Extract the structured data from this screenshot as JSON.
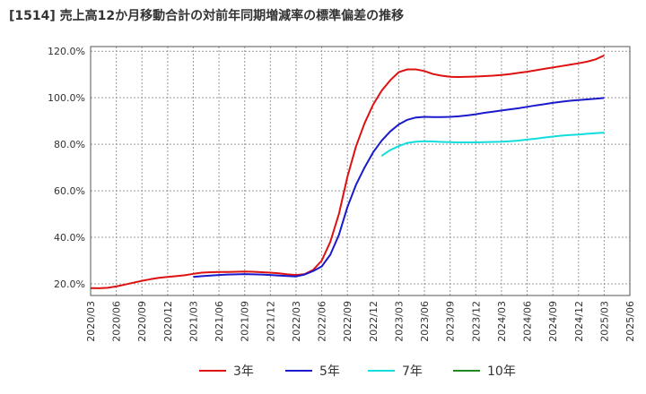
{
  "chart_data": {
    "type": "line",
    "title": "[1514]  売上高12か月移動合計の対前年同期増減率の標準偏差の推移",
    "y_ticks": [
      "20.0%",
      "40.0%",
      "60.0%",
      "80.0%",
      "100.0%",
      "120.0%"
    ],
    "y_tick_values": [
      20,
      40,
      60,
      80,
      100,
      120
    ],
    "ylim": [
      15,
      122
    ],
    "x_ticks": [
      "2020/03",
      "2020/06",
      "2020/09",
      "2020/12",
      "2021/03",
      "2021/06",
      "2021/09",
      "2021/12",
      "2022/03",
      "2022/06",
      "2022/09",
      "2022/12",
      "2023/03",
      "2023/06",
      "2023/09",
      "2023/12",
      "2024/03",
      "2024/06",
      "2024/09",
      "2024/12",
      "2025/03",
      "2025/06"
    ],
    "grid": true,
    "legend_position": "bottom",
    "series": [
      {
        "name": "3年",
        "color": "#dd1111",
        "x": [
          "2020/03",
          "2020/04",
          "2020/05",
          "2020/06",
          "2020/07",
          "2020/08",
          "2020/09",
          "2020/10",
          "2020/11",
          "2020/12",
          "2021/01",
          "2021/02",
          "2021/03",
          "2021/04",
          "2021/05",
          "2021/06",
          "2021/07",
          "2021/08",
          "2021/09",
          "2021/10",
          "2021/11",
          "2021/12",
          "2022/01",
          "2022/02",
          "2022/03",
          "2022/04",
          "2022/05",
          "2022/06",
          "2022/07",
          "2022/08",
          "2022/09",
          "2022/10",
          "2022/11",
          "2022/12",
          "2023/01",
          "2023/02",
          "2023/03",
          "2023/04",
          "2023/05",
          "2023/06",
          "2023/07",
          "2023/08",
          "2023/09",
          "2023/10",
          "2023/11",
          "2023/12",
          "2024/01",
          "2024/02",
          "2024/03",
          "2024/04",
          "2024/05",
          "2024/06",
          "2024/07",
          "2024/08",
          "2024/09",
          "2024/10",
          "2024/11",
          "2024/12",
          "2025/01",
          "2025/02",
          "2025/03"
        ],
        "values": [
          18.2,
          18.1,
          18.3,
          18.9,
          19.7,
          20.5,
          21.3,
          22.0,
          22.6,
          23.0,
          23.3,
          23.7,
          24.3,
          24.8,
          25.0,
          25.1,
          25.1,
          25.2,
          25.3,
          25.2,
          25.0,
          24.8,
          24.5,
          24.1,
          23.8,
          24.2,
          26.0,
          30.0,
          38.0,
          50.0,
          66.0,
          79.0,
          89.0,
          97.0,
          103.0,
          107.5,
          111.0,
          112.2,
          112.2,
          111.5,
          110.2,
          109.5,
          109.0,
          108.9,
          109.0,
          109.1,
          109.3,
          109.5,
          109.8,
          110.2,
          110.7,
          111.2,
          111.8,
          112.4,
          113.0,
          113.6,
          114.2,
          114.8,
          115.5,
          116.5,
          118.2
        ]
      },
      {
        "name": "5年",
        "color": "#1a1acc",
        "x": [
          "2021/03",
          "2021/04",
          "2021/05",
          "2021/06",
          "2021/07",
          "2021/08",
          "2021/09",
          "2021/10",
          "2021/11",
          "2021/12",
          "2022/01",
          "2022/02",
          "2022/03",
          "2022/04",
          "2022/05",
          "2022/06",
          "2022/07",
          "2022/08",
          "2022/09",
          "2022/10",
          "2022/11",
          "2022/12",
          "2023/01",
          "2023/02",
          "2023/03",
          "2023/04",
          "2023/05",
          "2023/06",
          "2023/07",
          "2023/08",
          "2023/09",
          "2023/10",
          "2023/11",
          "2023/12",
          "2024/01",
          "2024/02",
          "2024/03",
          "2024/04",
          "2024/05",
          "2024/06",
          "2024/07",
          "2024/08",
          "2024/09",
          "2024/10",
          "2024/11",
          "2024/12",
          "2025/01",
          "2025/02",
          "2025/03"
        ],
        "values": [
          23.0,
          23.3,
          23.6,
          23.8,
          24.0,
          24.1,
          24.2,
          24.1,
          24.0,
          23.8,
          23.6,
          23.4,
          23.2,
          24.0,
          25.5,
          27.5,
          32.5,
          41.0,
          53.0,
          62.5,
          70.0,
          76.5,
          81.5,
          85.5,
          88.5,
          90.5,
          91.5,
          91.8,
          91.7,
          91.7,
          91.8,
          92.0,
          92.4,
          92.9,
          93.5,
          94.0,
          94.5,
          95.0,
          95.5,
          96.1,
          96.7,
          97.2,
          97.8,
          98.3,
          98.7,
          99.0,
          99.3,
          99.6,
          99.9
        ]
      },
      {
        "name": "7年",
        "color": "#11dddd",
        "x": [
          "2023/01",
          "2023/02",
          "2023/03",
          "2023/04",
          "2023/05",
          "2023/06",
          "2023/07",
          "2023/08",
          "2023/09",
          "2023/10",
          "2023/11",
          "2023/12",
          "2024/01",
          "2024/02",
          "2024/03",
          "2024/04",
          "2024/05",
          "2024/06",
          "2024/07",
          "2024/08",
          "2024/09",
          "2024/10",
          "2024/11",
          "2024/12",
          "2025/01",
          "2025/02",
          "2025/03"
        ],
        "values": [
          75.0,
          77.5,
          79.2,
          80.6,
          81.1,
          81.3,
          81.2,
          81.0,
          80.9,
          80.8,
          80.8,
          80.8,
          80.9,
          81.0,
          81.1,
          81.3,
          81.6,
          82.0,
          82.4,
          82.9,
          83.3,
          83.7,
          84.0,
          84.2,
          84.5,
          84.8,
          85.0
        ]
      },
      {
        "name": "10年",
        "color": "#228822",
        "x": [],
        "values": []
      }
    ]
  }
}
